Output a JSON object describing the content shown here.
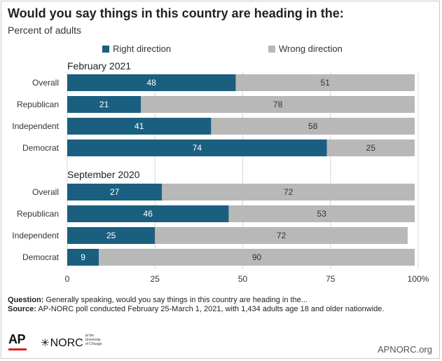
{
  "title": "Would you say things in this country are heading in the:",
  "subtitle": "Percent of adults",
  "legend": {
    "right": "Right direction",
    "wrong": "Wrong direction"
  },
  "colors": {
    "right": "#1b5f80",
    "wrong": "#b8b8b8",
    "grid": "#d6d6d6"
  },
  "chart_data": {
    "type": "bar",
    "orientation": "horizontal",
    "stacked": true,
    "xlim": [
      0,
      100
    ],
    "xticks": [
      "0",
      "25",
      "50",
      "75",
      "100%"
    ],
    "series": [
      {
        "name": "Right direction"
      },
      {
        "name": "Wrong direction"
      }
    ],
    "groups": [
      {
        "label": "February 2021",
        "rows": [
          {
            "category": "Overall",
            "right": 48,
            "wrong": 51
          },
          {
            "category": "Republican",
            "right": 21,
            "wrong": 78
          },
          {
            "category": "Independent",
            "right": 41,
            "wrong": 58
          },
          {
            "category": "Democrat",
            "right": 74,
            "wrong": 25
          }
        ]
      },
      {
        "label": "September 2020",
        "rows": [
          {
            "category": "Overall",
            "right": 27,
            "wrong": 72
          },
          {
            "category": "Republican",
            "right": 46,
            "wrong": 53
          },
          {
            "category": "Independent",
            "right": 25,
            "wrong": 72
          },
          {
            "category": "Democrat",
            "right": 9,
            "wrong": 90
          }
        ]
      }
    ],
    "grid": true,
    "legend_position": "top"
  },
  "notes": {
    "question_label": "Question:",
    "question": " Generally speaking, would you say things in this country are heading in the...",
    "source_label": "Source:",
    "source": " AP-NORC poll conducted February 25-March 1, 2021, with 1,434 adults age 18 and older nationwide."
  },
  "footer": {
    "ap_logo": "AP",
    "norc_logo": "NORC",
    "norc_tagline": "at the University of Chicago",
    "site": "APNORC.org"
  }
}
